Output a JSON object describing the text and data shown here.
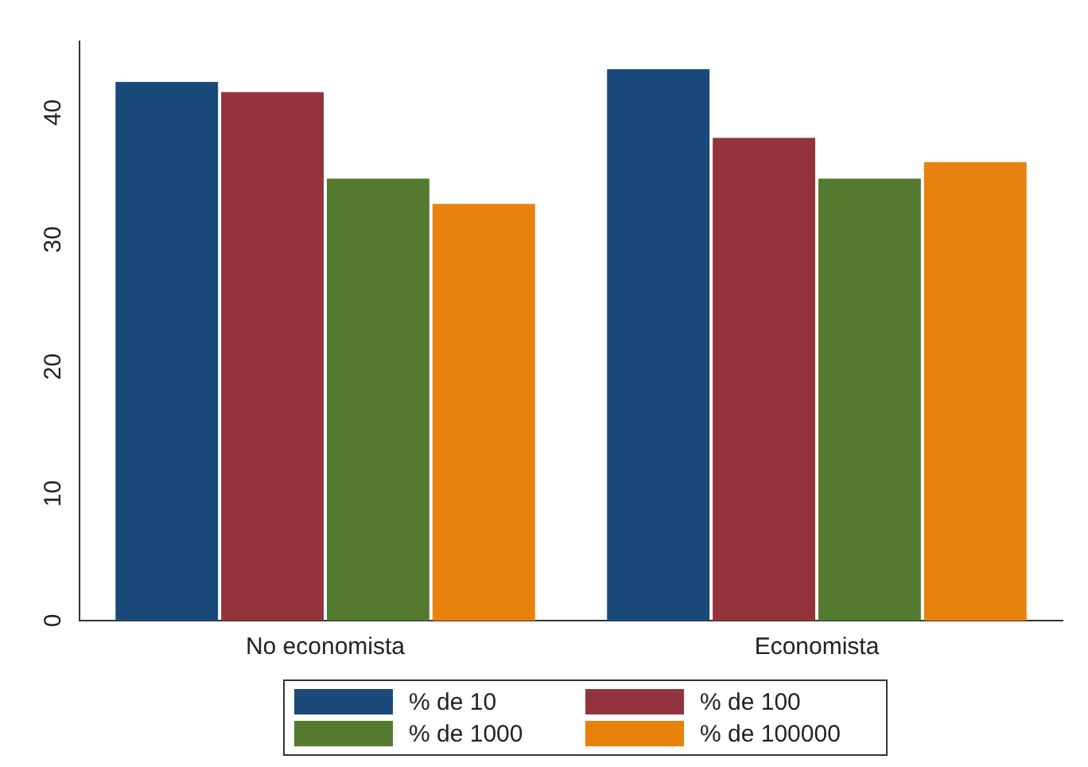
{
  "chart_data": {
    "type": "bar",
    "categories": [
      "No economista",
      "Economista"
    ],
    "series": [
      {
        "name": "% de 10",
        "color": "#1a4a7a",
        "values": [
          42.4,
          43.4
        ]
      },
      {
        "name": "% de 100",
        "color": "#93343c",
        "values": [
          41.6,
          38.0
        ]
      },
      {
        "name": "% de 1000",
        "color": "#537a2e",
        "values": [
          34.8,
          34.8
        ]
      },
      {
        "name": "% de 100000",
        "color": "#e8820c",
        "values": [
          32.8,
          36.1
        ]
      }
    ],
    "ylim": [
      0,
      45.6
    ],
    "yticks": [
      0,
      10,
      20,
      30,
      40
    ],
    "grid": false,
    "legend": "bottom"
  }
}
